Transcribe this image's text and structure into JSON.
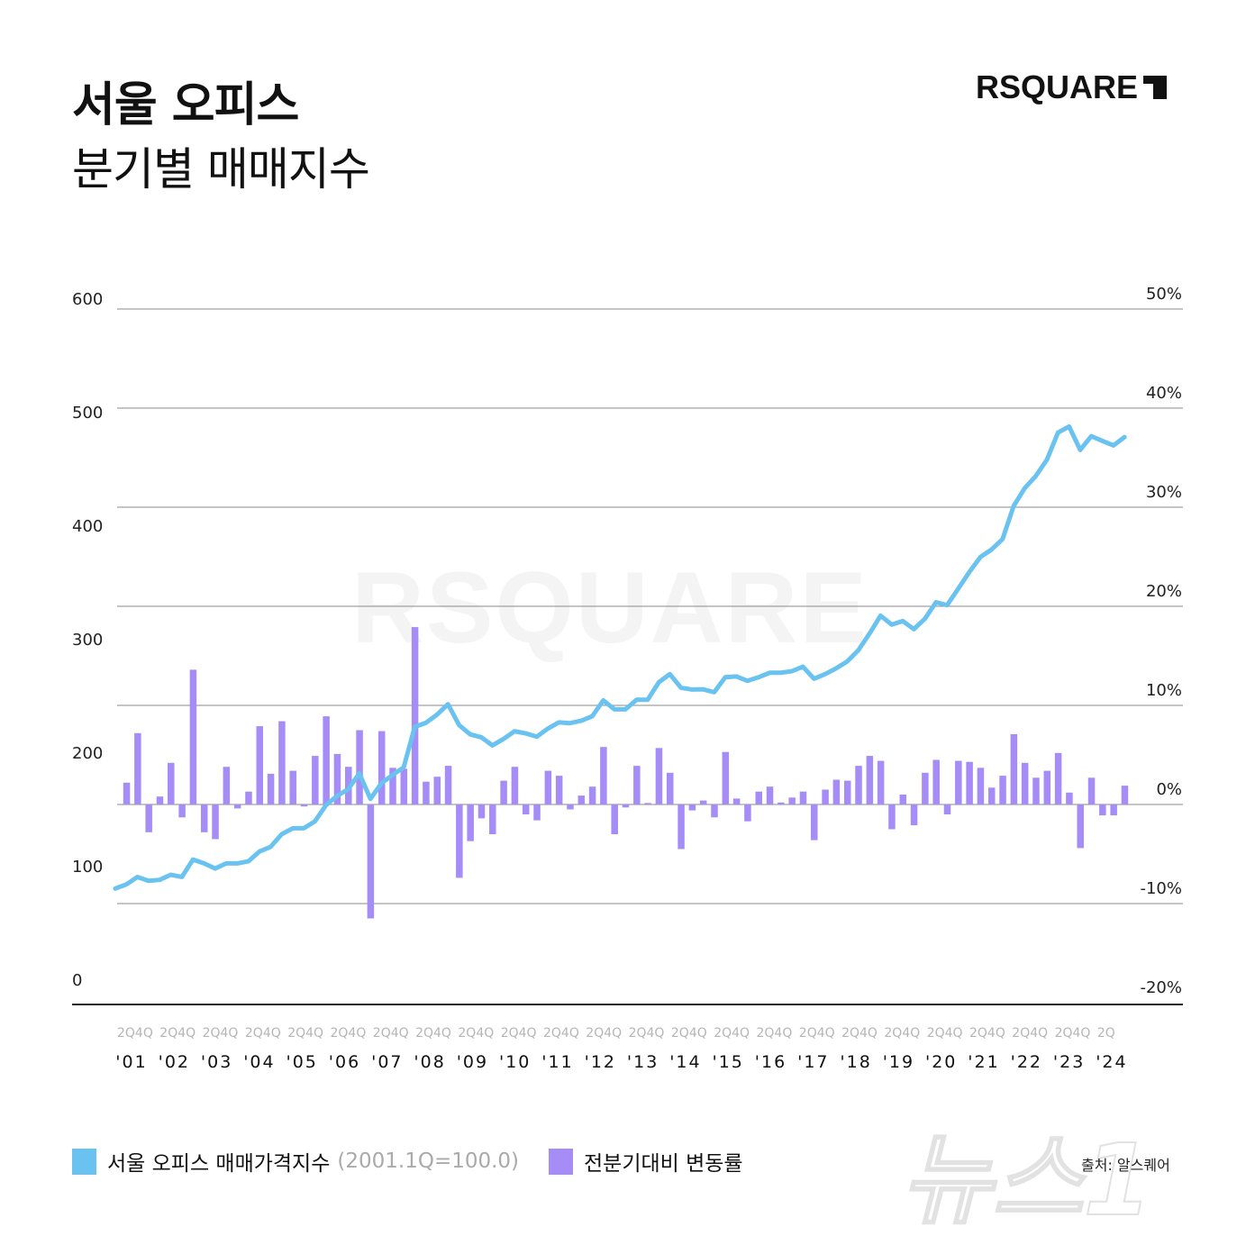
{
  "header": {
    "title_line1": "서울 오피스",
    "title_line2": "분기별 매매지수",
    "logo": "RSQUARE"
  },
  "legend": {
    "line_label": "서울 오피스 매매가격지수",
    "line_note": "(2001.1Q=100.0)",
    "bar_label": "전분기대비 변동률"
  },
  "source": "출처: 알스퀘어",
  "colors": {
    "line": "#6ac2f0",
    "bar": "#a58cf7",
    "grid": "#8a8a8a",
    "axis": "#222222"
  },
  "chart_data": {
    "type": "line+bar",
    "title": "서울 오피스 분기별 매매지수",
    "start_quarter": "2001Q1",
    "left_axis": {
      "ticks": [
        "600",
        "500",
        "400",
        "300",
        "200",
        "100",
        "0"
      ],
      "ylim": [
        0,
        600
      ]
    },
    "right_axis": {
      "ticks": [
        "50%",
        "40%",
        "30%",
        "20%",
        "10%",
        "0%",
        "-10%",
        "-20%"
      ],
      "ylim": [
        -20,
        50
      ]
    },
    "x_quarter_ticks": [
      "2Q4Q",
      "2Q4Q",
      "2Q4Q",
      "2Q4Q",
      "2Q4Q",
      "2Q4Q",
      "2Q4Q",
      "2Q4Q",
      "2Q4Q",
      "2Q4Q",
      "2Q4Q",
      "2Q4Q",
      "2Q4Q",
      "2Q4Q",
      "2Q4Q",
      "2Q4Q",
      "2Q4Q",
      "2Q4Q",
      "2Q4Q",
      "2Q4Q",
      "2Q4Q",
      "2Q4Q",
      "2Q4Q",
      "2Q"
    ],
    "x_year_ticks": [
      "'01",
      "'02",
      "'03",
      "'04",
      "'05",
      "'06",
      "'07",
      "'08",
      "'09",
      "'10",
      "'11",
      "'12",
      "'13",
      "'14",
      "'15",
      "'16",
      "'17",
      "'18",
      "'19",
      "'20",
      "'21",
      "'22",
      "'23",
      "'24"
    ],
    "series": [
      {
        "name": "서울 오피스 매매가격지수",
        "type": "line",
        "axis": "left",
        "values": [
          100,
          103.6,
          110,
          106.7,
          107.5,
          111.9,
          110,
          125,
          121.7,
          117.3,
          121.7,
          121.7,
          123.5,
          132,
          136,
          146.9,
          152,
          152,
          158,
          172,
          180,
          185.7,
          199.4,
          177.4,
          190.9,
          198,
          204.6,
          239.5,
          243,
          250,
          259,
          241,
          233,
          230.5,
          223.5,
          229,
          235.7,
          233.9,
          231,
          238,
          243.4,
          242.7,
          244.8,
          248.6,
          262.4,
          254.6,
          254.6,
          262.9,
          262.9,
          277.9,
          285,
          273.3,
          271.7,
          271.9,
          269.4,
          282.3,
          283,
          279.2,
          282.3,
          286.2,
          286.2,
          287.5,
          291.4,
          281,
          285,
          290,
          296,
          305.6,
          319.9,
          335.4,
          327.7,
          330.8,
          323.8,
          332.8,
          347,
          344.5,
          358.7,
          373,
          386,
          392.4,
          401.5,
          430,
          445.5,
          455.9,
          470,
          493.4,
          498.6,
          478.4,
          490.3,
          486.2,
          482.3,
          489.5
        ]
      },
      {
        "name": "전분기대비 변동률",
        "type": "bar",
        "axis": "right",
        "unit": "%",
        "values": [
          null,
          2.2,
          7.2,
          -2.8,
          0.8,
          4.2,
          -1.3,
          13.6,
          -2.8,
          -3.5,
          3.8,
          -0.4,
          1.3,
          7.9,
          3.1,
          8.4,
          3.4,
          -0.2,
          4.9,
          8.9,
          5.1,
          3.8,
          7.5,
          -11.5,
          7.4,
          3.7,
          3.6,
          17.9,
          2.3,
          2.8,
          3.9,
          -7.4,
          -3.7,
          -1.4,
          -3.0,
          2.4,
          3.8,
          -1.0,
          -1.6,
          3.4,
          2.9,
          -0.5,
          0.9,
          1.8,
          5.8,
          -3.0,
          -0.3,
          3.9,
          0.15,
          5.7,
          3.2,
          -4.5,
          -0.6,
          0.4,
          -1.3,
          5.3,
          0.6,
          -1.7,
          1.3,
          1.8,
          0.2,
          0.7,
          1.3,
          -3.6,
          1.5,
          2.5,
          2.4,
          3.9,
          4.9,
          4.4,
          -2.5,
          1.0,
          -2.1,
          3.2,
          4.5,
          -1.0,
          4.4,
          4.3,
          3.7,
          1.7,
          2.9,
          7.1,
          4.2,
          2.7,
          3.4,
          5.2,
          1.2,
          -4.4,
          2.7,
          -1.1,
          -1.1,
          1.9
        ]
      }
    ],
    "grid": true,
    "legend_position": "bottom-left"
  }
}
